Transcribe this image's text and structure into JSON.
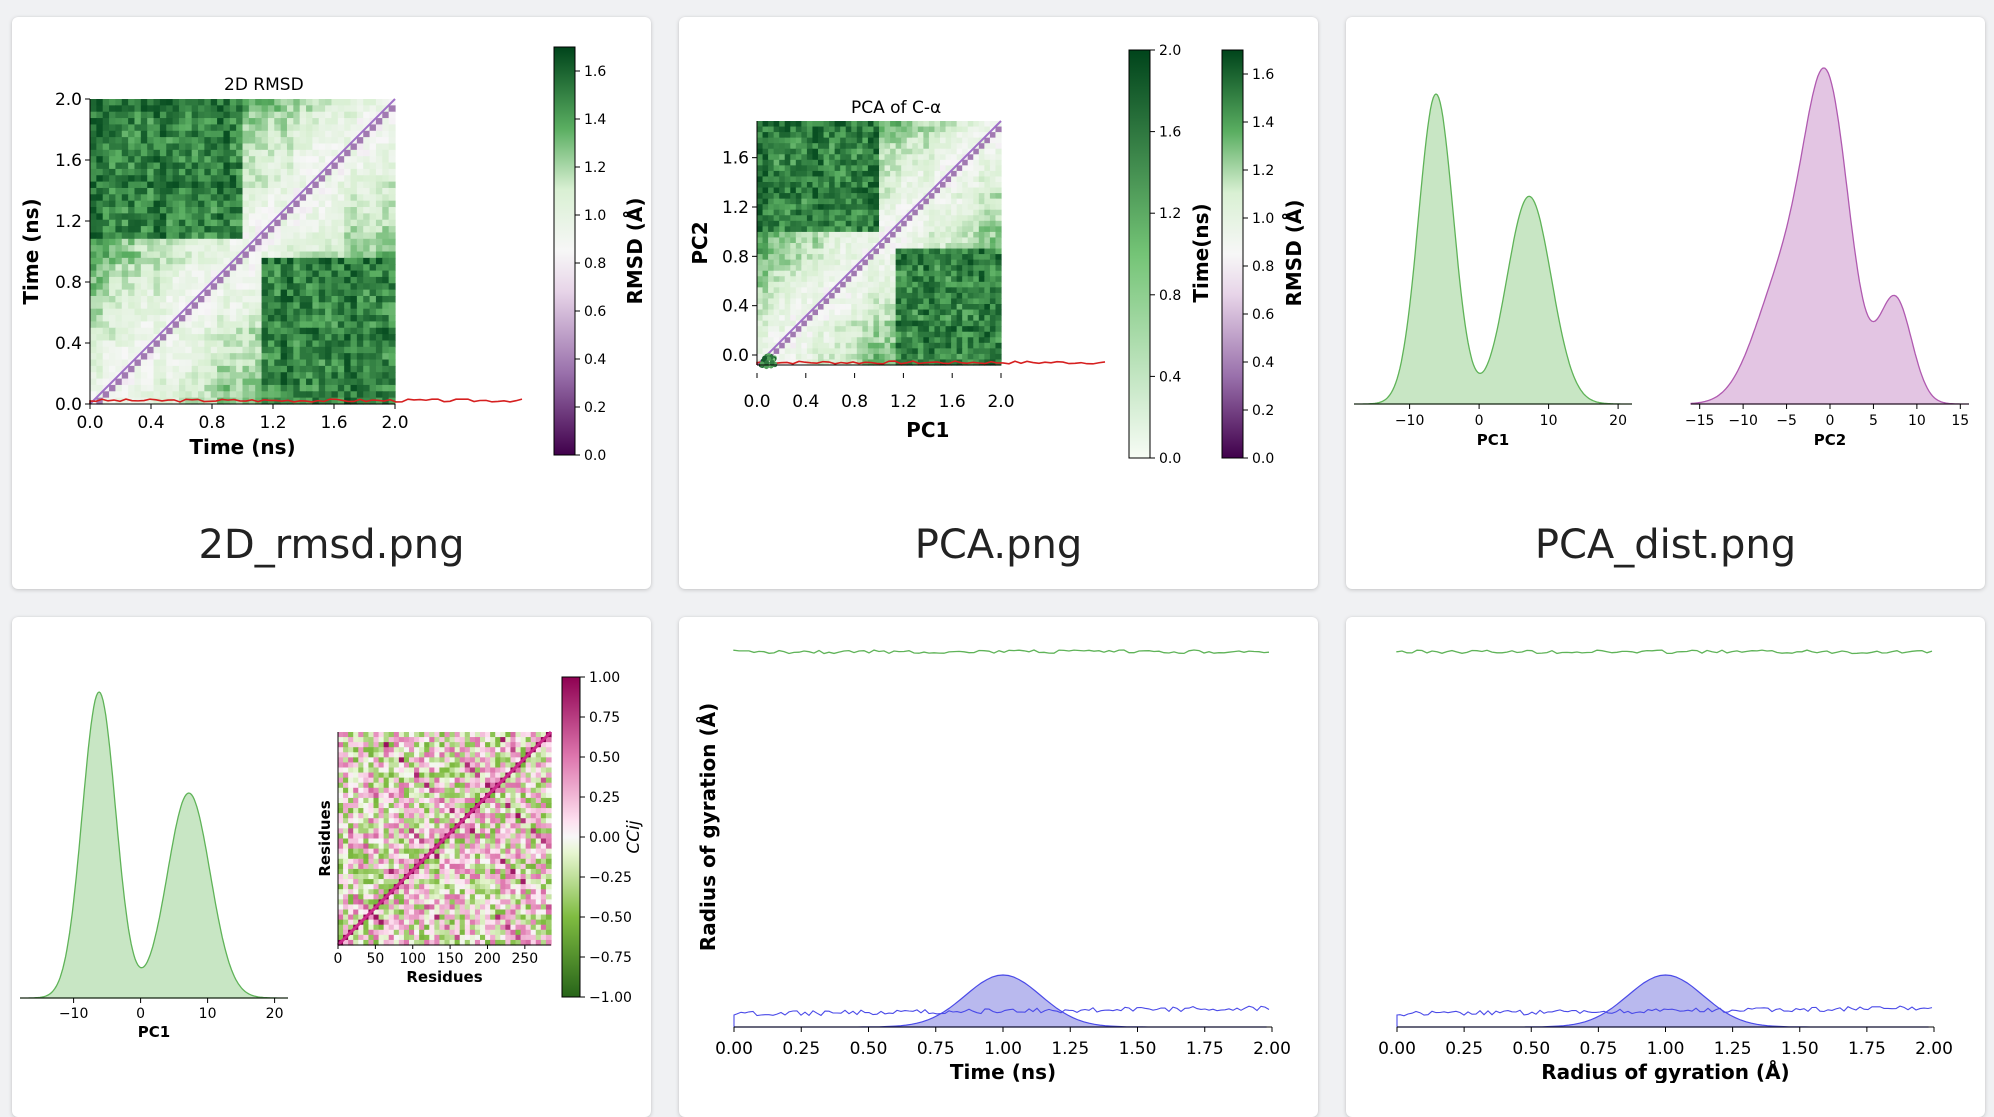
{
  "gallery": {
    "cards": [
      {
        "caption": "2D_rmsd.png"
      },
      {
        "caption": "PCA.png"
      },
      {
        "caption": "PCA_dist.png"
      },
      {
        "caption": ""
      },
      {
        "caption": ""
      },
      {
        "caption": ""
      }
    ]
  },
  "colors": {
    "green_fill": "#c8e6c4",
    "green_line": "#5fb358",
    "purple_fill": "#e3c5e3",
    "purple_line": "#b05ab0",
    "blue_fill": "#b9b9ee",
    "blue_line": "#4a4ae8",
    "red_line": "#d62020",
    "diag_purple": "#a070c8",
    "ccij_pink": "#cc2a8a"
  },
  "chart_data": [
    {
      "id": "2d_rmsd",
      "type": "heatmap",
      "title": "2D RMSD",
      "xlabel": "Time (ns)",
      "ylabel": "Time (ns)",
      "xticks": [
        "0.0",
        "0.4",
        "0.8",
        "1.2",
        "1.6",
        "2.0"
      ],
      "yticks": [
        "0.0",
        "0.4",
        "0.8",
        "1.2",
        "1.6",
        "2.0"
      ],
      "xlim": [
        0,
        2.0
      ],
      "ylim": [
        0,
        2.0
      ],
      "colorbar": {
        "label": "RMSD (Å)",
        "ticks": [
          "0.0",
          "0.2",
          "0.4",
          "0.6",
          "0.8",
          "1.0",
          "1.2",
          "1.4",
          "1.6"
        ],
        "range": [
          0,
          1.7
        ],
        "colormap": "PRGn"
      }
    },
    {
      "id": "pca",
      "type": "heatmap",
      "title": "PCA of C-α",
      "xlabel": "PC1",
      "ylabel": "PC2",
      "xticks": [
        "0.0",
        "0.4",
        "0.8",
        "1.2",
        "1.6",
        "2.0"
      ],
      "yticks": [
        "0.0",
        "0.4",
        "0.8",
        "1.2",
        "1.6"
      ],
      "colorbars": [
        {
          "label": "Time(ns)",
          "ticks": [
            "0.0",
            "0.4",
            "0.8",
            "1.2",
            "1.6",
            "2.0"
          ],
          "range": [
            0,
            2.0
          ],
          "colormap": "Greens"
        },
        {
          "label": "RMSD (Å)",
          "ticks": [
            "0.0",
            "0.2",
            "0.4",
            "0.6",
            "0.8",
            "1.0",
            "1.2",
            "1.4",
            "1.6"
          ],
          "range": [
            0,
            1.7
          ],
          "colormap": "PRGn"
        }
      ]
    },
    {
      "id": "pca_dist",
      "type": "area",
      "panels": [
        {
          "xlabel": "PC1",
          "xticks": [
            "−10",
            "0",
            "10",
            "20"
          ],
          "xlim": [
            -18,
            22
          ],
          "peaks": [
            {
              "mu": -6.2,
              "sigma": 2.5,
              "amp": 1.0
            },
            {
              "mu": 7.2,
              "sigma": 3.2,
              "amp": 0.67
            }
          ],
          "color": "green"
        },
        {
          "xlabel": "PC2",
          "xticks": [
            "−15",
            "−10",
            "−5",
            "0",
            "5",
            "10",
            "15"
          ],
          "xlim": [
            -16,
            16
          ],
          "peaks": [
            {
              "mu": -5.5,
              "sigma": 3.2,
              "amp": 0.34
            },
            {
              "mu": -0.3,
              "sigma": 2.6,
              "amp": 0.86
            },
            {
              "mu": 7.5,
              "sigma": 1.9,
              "amp": 0.3
            }
          ],
          "color": "purple"
        }
      ]
    },
    {
      "id": "pca_dist_and_ccij",
      "type": "area",
      "panels": [
        {
          "xlabel": "PC1",
          "xticks": [
            "−10",
            "0",
            "10",
            "20"
          ],
          "xlim": [
            -18,
            22
          ],
          "peaks": [
            {
              "mu": -6.2,
              "sigma": 2.5,
              "amp": 1.0
            },
            {
              "mu": 7.2,
              "sigma": 3.2,
              "amp": 0.67
            }
          ],
          "color": "green"
        }
      ],
      "heatmap": {
        "xlabel": "Residues",
        "ylabel": "Residues",
        "xticks": [
          "0",
          "50",
          "100",
          "150",
          "200",
          "250"
        ],
        "colorbar": {
          "label": "CCij",
          "ticks": [
            "1.00",
            "0.75",
            "0.50",
            "0.25",
            "0.00",
            "−0.25",
            "−0.50",
            "−0.75",
            "−1.00"
          ],
          "range": [
            -1,
            1
          ],
          "colormap": "PiYG"
        }
      }
    },
    {
      "id": "rg_time",
      "type": "line",
      "xlabel": "Time (ns)",
      "ylabel": "Radius of gyration (Å)",
      "xticks": [
        "0.00",
        "0.25",
        "0.50",
        "0.75",
        "1.00",
        "1.25",
        "1.50",
        "1.75",
        "2.00"
      ],
      "xlim": [
        0,
        2.0
      ]
    },
    {
      "id": "rg_dist",
      "type": "line",
      "xlabel": "Radius of gyration (Å)",
      "xticks": [
        "0.00",
        "0.25",
        "0.50",
        "0.75",
        "1.00",
        "1.25",
        "1.50",
        "1.75",
        "2.00"
      ],
      "xlim": [
        0,
        2.0
      ]
    }
  ]
}
